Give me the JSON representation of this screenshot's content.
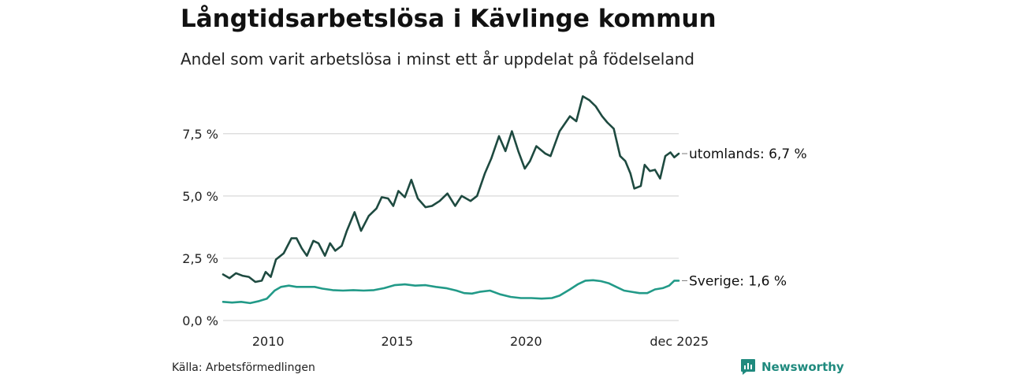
{
  "header": {
    "title": "Långtidsarbetslösa i Kävlinge kommun",
    "subtitle": "Andel som varit arbetslösa i minst ett år uppdelat på födelseland"
  },
  "footer": {
    "source": "Källa: Arbetsförmedlingen",
    "brand": "Newsworthy",
    "brand_icon": "newsworthy-logo-icon"
  },
  "chart_data": {
    "type": "line",
    "title": "Långtidsarbetslösa i Kävlinge kommun",
    "subtitle": "Andel som varit arbetslösa i minst ett år uppdelat på födelseland",
    "xlabel": "",
    "ylabel": "",
    "xlim": [
      2008.25,
      2025.92
    ],
    "ylim": [
      0,
      9.2
    ],
    "y_ticks": [
      {
        "value": 0,
        "label": "0,0 %"
      },
      {
        "value": 2.5,
        "label": "2,5 %"
      },
      {
        "value": 5,
        "label": "5,0 %"
      },
      {
        "value": 7.5,
        "label": "7,5 %"
      }
    ],
    "x_ticks": [
      {
        "value": 2010,
        "label": "2010"
      },
      {
        "value": 2015,
        "label": "2015"
      },
      {
        "value": 2020,
        "label": "2020"
      },
      {
        "value": 2025.92,
        "label": "dec 2025"
      }
    ],
    "grid": true,
    "series": [
      {
        "name": "utomlands",
        "label": "utomlands: 6,7 %",
        "color": "#1e4a40",
        "points": [
          [
            2008.25,
            1.85
          ],
          [
            2008.5,
            1.7
          ],
          [
            2008.75,
            1.9
          ],
          [
            2009.0,
            1.8
          ],
          [
            2009.25,
            1.75
          ],
          [
            2009.5,
            1.55
          ],
          [
            2009.75,
            1.6
          ],
          [
            2009.9,
            1.95
          ],
          [
            2010.1,
            1.75
          ],
          [
            2010.3,
            2.45
          ],
          [
            2010.6,
            2.7
          ],
          [
            2010.9,
            3.3
          ],
          [
            2011.1,
            3.3
          ],
          [
            2011.3,
            2.9
          ],
          [
            2011.5,
            2.6
          ],
          [
            2011.75,
            3.2
          ],
          [
            2011.95,
            3.1
          ],
          [
            2012.2,
            2.6
          ],
          [
            2012.4,
            3.1
          ],
          [
            2012.6,
            2.8
          ],
          [
            2012.85,
            3.0
          ],
          [
            2013.05,
            3.6
          ],
          [
            2013.35,
            4.35
          ],
          [
            2013.6,
            3.6
          ],
          [
            2013.9,
            4.2
          ],
          [
            2014.2,
            4.5
          ],
          [
            2014.4,
            4.95
          ],
          [
            2014.65,
            4.9
          ],
          [
            2014.85,
            4.6
          ],
          [
            2015.05,
            5.2
          ],
          [
            2015.3,
            4.95
          ],
          [
            2015.55,
            5.65
          ],
          [
            2015.8,
            4.9
          ],
          [
            2016.1,
            4.55
          ],
          [
            2016.35,
            4.6
          ],
          [
            2016.65,
            4.8
          ],
          [
            2016.95,
            5.1
          ],
          [
            2017.25,
            4.6
          ],
          [
            2017.5,
            5.0
          ],
          [
            2017.85,
            4.8
          ],
          [
            2018.1,
            5.0
          ],
          [
            2018.4,
            5.9
          ],
          [
            2018.65,
            6.5
          ],
          [
            2018.95,
            7.4
          ],
          [
            2019.2,
            6.8
          ],
          [
            2019.45,
            7.6
          ],
          [
            2019.7,
            6.8
          ],
          [
            2019.95,
            6.1
          ],
          [
            2020.15,
            6.4
          ],
          [
            2020.4,
            7.0
          ],
          [
            2020.75,
            6.7
          ],
          [
            2020.95,
            6.6
          ],
          [
            2021.3,
            7.6
          ],
          [
            2021.7,
            8.2
          ],
          [
            2021.95,
            8.0
          ],
          [
            2022.2,
            9.0
          ],
          [
            2022.45,
            8.85
          ],
          [
            2022.7,
            8.6
          ],
          [
            2022.95,
            8.2
          ],
          [
            2023.15,
            7.95
          ],
          [
            2023.4,
            7.7
          ],
          [
            2023.65,
            6.6
          ],
          [
            2023.85,
            6.4
          ],
          [
            2024.05,
            5.9
          ],
          [
            2024.2,
            5.3
          ],
          [
            2024.45,
            5.4
          ],
          [
            2024.6,
            6.25
          ],
          [
            2024.8,
            6.0
          ],
          [
            2025.0,
            6.05
          ],
          [
            2025.2,
            5.7
          ],
          [
            2025.4,
            6.6
          ],
          [
            2025.6,
            6.75
          ],
          [
            2025.75,
            6.55
          ],
          [
            2025.92,
            6.7
          ]
        ]
      },
      {
        "name": "Sverige",
        "label": "Sverige: 1,6 %",
        "color": "#229a88",
        "points": [
          [
            2008.25,
            0.75
          ],
          [
            2008.6,
            0.72
          ],
          [
            2008.95,
            0.75
          ],
          [
            2009.3,
            0.7
          ],
          [
            2009.65,
            0.78
          ],
          [
            2009.95,
            0.88
          ],
          [
            2010.25,
            1.2
          ],
          [
            2010.5,
            1.35
          ],
          [
            2010.8,
            1.4
          ],
          [
            2011.1,
            1.35
          ],
          [
            2011.45,
            1.35
          ],
          [
            2011.8,
            1.35
          ],
          [
            2012.1,
            1.28
          ],
          [
            2012.5,
            1.22
          ],
          [
            2012.9,
            1.2
          ],
          [
            2013.3,
            1.22
          ],
          [
            2013.7,
            1.2
          ],
          [
            2014.1,
            1.22
          ],
          [
            2014.5,
            1.3
          ],
          [
            2014.9,
            1.42
          ],
          [
            2015.3,
            1.45
          ],
          [
            2015.7,
            1.4
          ],
          [
            2016.1,
            1.42
          ],
          [
            2016.5,
            1.35
          ],
          [
            2016.9,
            1.3
          ],
          [
            2017.3,
            1.2
          ],
          [
            2017.6,
            1.1
          ],
          [
            2017.9,
            1.08
          ],
          [
            2018.2,
            1.15
          ],
          [
            2018.6,
            1.2
          ],
          [
            2019.0,
            1.05
          ],
          [
            2019.4,
            0.95
          ],
          [
            2019.8,
            0.9
          ],
          [
            2020.2,
            0.9
          ],
          [
            2020.6,
            0.88
          ],
          [
            2021.0,
            0.9
          ],
          [
            2021.3,
            1.0
          ],
          [
            2021.7,
            1.25
          ],
          [
            2022.0,
            1.45
          ],
          [
            2022.3,
            1.6
          ],
          [
            2022.6,
            1.62
          ],
          [
            2022.9,
            1.58
          ],
          [
            2023.2,
            1.5
          ],
          [
            2023.5,
            1.35
          ],
          [
            2023.8,
            1.2
          ],
          [
            2024.1,
            1.15
          ],
          [
            2024.4,
            1.1
          ],
          [
            2024.7,
            1.1
          ],
          [
            2025.0,
            1.25
          ],
          [
            2025.3,
            1.3
          ],
          [
            2025.55,
            1.4
          ],
          [
            2025.75,
            1.6
          ],
          [
            2025.92,
            1.6
          ]
        ]
      }
    ]
  }
}
